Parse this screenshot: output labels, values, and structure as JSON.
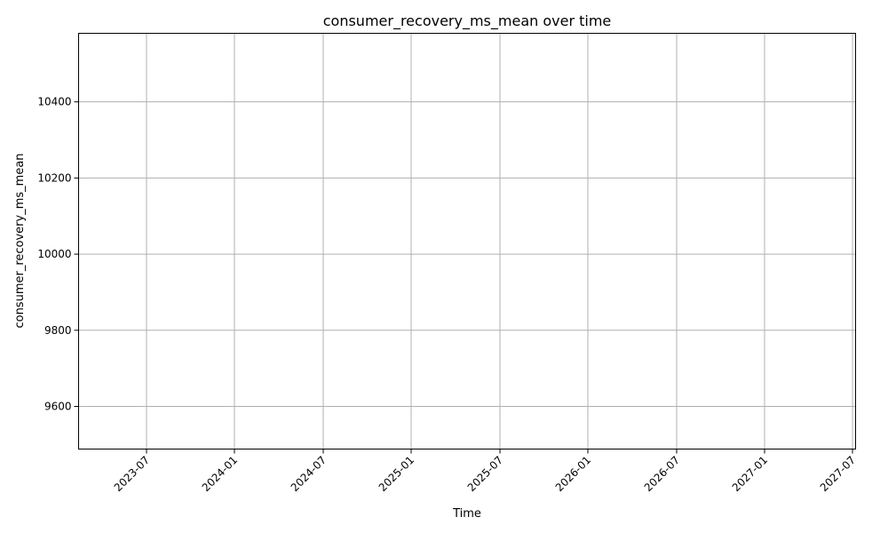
{
  "chart_data": {
    "type": "line",
    "title": "consumer_recovery_ms_mean over time",
    "xlabel": "Time",
    "ylabel": "consumer_recovery_ms_mean",
    "grid": true,
    "x_ticks": [
      "2023-07",
      "2024-01",
      "2024-07",
      "2025-01",
      "2025-07",
      "2026-01",
      "2026-07",
      "2027-01",
      "2027-07"
    ],
    "y_ticks": [
      9600,
      9800,
      10000,
      10200,
      10400
    ],
    "ylim": [
      9488,
      10580
    ],
    "series": [
      {
        "name": "consumer_recovery_ms_mean",
        "x": [],
        "values": []
      }
    ]
  }
}
